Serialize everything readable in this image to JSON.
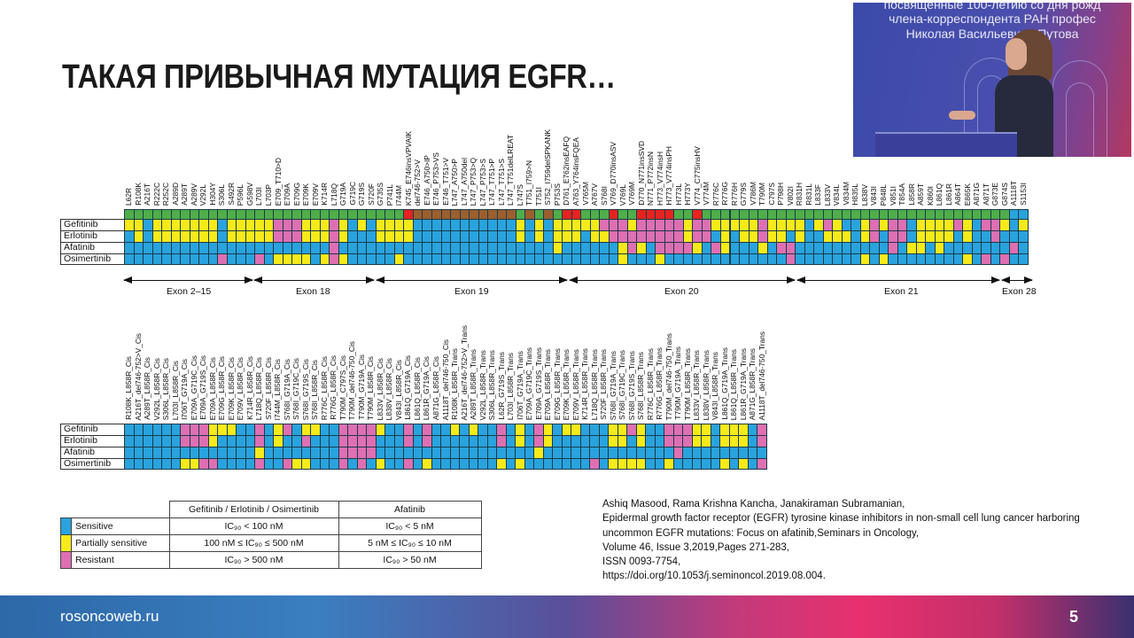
{
  "slide": {
    "title": "ТАКАЯ ПРИВЫЧНАЯ МУТАЦИЯ EGFR…",
    "footer_site": "rosoncoweb.ru",
    "page_number": "5"
  },
  "video_inset": {
    "banner_lines": [
      "посвященные 100-летию со дня рожд",
      "члена-корреспондента РАН профес",
      "Николая Васильевича Путова"
    ]
  },
  "colors": {
    "G": "#4fae4a",
    "R": "#e52320",
    "N": "#9b5f2e",
    "S": "#29a3dd",
    "Y": "#f7ea1a",
    "P": "#de6fb2"
  },
  "chart_data": [
    {
      "type": "heatmap",
      "rows": [
        "",
        "Gefitinib",
        "Erlotinib",
        "Afatinib",
        "Osimertinib"
      ],
      "columns": [
        "L62R",
        "R108K",
        "A216T",
        "R222C",
        "R252C",
        "A289D",
        "A289T",
        "A289V",
        "V292L",
        "H304Y",
        "S306L",
        "S492R",
        "P596L",
        "G598V",
        "L703I",
        "L703P",
        "E709_T710>D",
        "E709A",
        "E709G",
        "E709K",
        "E709V",
        "K714R",
        "L718Q",
        "G719A",
        "G719C",
        "G719S",
        "S720F",
        "G735S",
        "P741L",
        "I744M",
        "K745_E746insVPVAIK",
        "del746-752>V",
        "E746_A750>IP",
        "E746_P753>VS",
        "E746_T751>V",
        "L747_A750>P",
        "L747_A750del",
        "L747_P753>Q",
        "L747_P753>S",
        "L747_T751>P",
        "L747_T751>S",
        "L747_T751delLREAT",
        "L747S",
        "T751_I759>N",
        "T751I",
        "S752_I759delSPKANK",
        "P753S",
        "D761_E762insEAFQ",
        "A763_Y764insFQEA",
        "V765M",
        "A767V",
        "S768I",
        "V769_D770insASV",
        "V769L",
        "V769M",
        "D770_N771insSVD",
        "N771_P772insN",
        "H773_V774insH",
        "H773_V774insPH",
        "H773L",
        "H773Y",
        "V774_C775insHV",
        "V774M",
        "R776C",
        "R776G",
        "R776H",
        "G779S",
        "V786M",
        "T790M",
        "C797S",
        "P798H",
        "V802I",
        "R831H",
        "R831L",
        "L833F",
        "L833V",
        "V834L",
        "V834M",
        "H835L",
        "L838V",
        "V843I",
        "P848L",
        "V851I",
        "T854A",
        "L858R",
        "A859T",
        "K860I",
        "L861Q",
        "L861R",
        "A864T",
        "E865K",
        "A871G",
        "A871T",
        "G873E",
        "G874S",
        "A1118T",
        "S1153I"
      ],
      "cells": [
        "GGGGGGGGGGGGGGGGGGGGGGGGGGGGGGRNNNNNNNNNNNGNGNGRRGGGRGGRRRRGGRGGGGGGGGGGGGGGGGGGGGGGGGGGGGGGGGG",
        "YYSYYYYYYYSYYYYYPPPYYYPYSYSYYYYSSSSSSSSSSSYSYSYYYYYPPPYPPPPPYPPYYYYYPYYYYSYPYSSYPYPPSYYYYPYSPPYSY",
        "SYSYYYYYYYSYYYYYPPPYYYPYSSSYYYYSSSSSSSSSSSYSYSYYYSYYPPPPPPPPYPPSYSYYPYYSYSSYYYSYPSPPSYYYYSYSSPSSS",
        "SSSSSSSSSSSSSSSSSSSSSSPSSSSSSSSSSSSSSSSSSSSSSSYSSSSSSYPYSPPPPYSPYSSSYSPPSSSSSSSSSSPSYYSYSSSSSSSPSSS",
        "SSSSSSSSSSPSSSPSYYYYSYPYSSSSSYSSSSSSSSSSSSSSSSSSSSSSSYSSSYSSSSSSSSSSSSSPSSSSSSSYSYSSSSSSSSYSPSPSSSS"
      ],
      "exons": [
        "Exon 2–15",
        "Exon 18",
        "Exon 19",
        "Exon 20",
        "Exon 21",
        "Exon 28"
      ]
    },
    {
      "type": "heatmap",
      "rows": [
        "Gefitinib",
        "Erlotinib",
        "Afatinib",
        "Osimertinib"
      ],
      "columns": [
        "R108K_L858R_Cis",
        "A216T_del746-752>V_Cis",
        "A289T_L858R_Cis",
        "V292L_L858R_Cis",
        "S306L_L858R_Cis",
        "L703I_L858R_Cis",
        "I706T_G719A_Cis",
        "E709A_G719C_Cis",
        "E709A_G719S_Cis",
        "E709A_L858R_Cis",
        "E709G_L858R_Cis",
        "E709K_L858R_Cis",
        "E709V_L858R_Cis",
        "K714R_L858R_Cis",
        "L718Q_L858R_Cis",
        "S720F_L858R_Cis",
        "I744M_L858R_Cis",
        "S768I_G719A_Cis",
        "S768I_G719C_Cis",
        "S768I_G719S_Cis",
        "S768I_L858R_Cis",
        "R776C_L858R_Cis",
        "R776G_L858R_Cis",
        "T790M_C797S_Cis",
        "T790M_del746-750_Cis",
        "T790M_G719A_Cis",
        "T790M_L858R_Cis",
        "L833V_L858R_Cis",
        "L838V_L858R_Cis",
        "V843I_L858R_Cis",
        "L861Q_G719A_Cis",
        "L861Q_L858R_Cis",
        "L861R_G719A_Cis",
        "A871G_L858R_Cis",
        "A1118T_del746-750_Cis",
        "R108K_L858R_Trans",
        "A216T_del746-752>V_Trans",
        "A289T_L858R_Trans",
        "V292L_L858R_Trans",
        "S306L_L858R_Trans",
        "L62R_G719S_Trans",
        "L703I_L858R_Trans",
        "I706T_G719A_Trans",
        "E709A_G719C_Trans",
        "E709A_G719S_Trans",
        "E709A_L858R_Trans",
        "E709G_L858R_Trans",
        "E709K_L858R_Trans",
        "E709V_L858R_Trans",
        "K714R_L858R_Trans",
        "L718Q_L858R_Trans",
        "S720F_L858R_Trans",
        "S768I_G719A_Trans",
        "S768I_G719C_Trans",
        "S768I_G719S_Trans",
        "S768I_L858R_Trans",
        "R776C_L858R_Trans",
        "R776G_L858R_Trans",
        "T790M_del746-750_Trans",
        "T790M_G719A_Trans",
        "T790M_L858R_Trans",
        "L833V_L858R_Trans",
        "L838V_L858R_Trans",
        "V843I_L858R_Trans",
        "L861Q_G719A_Trans",
        "L861Q_L858R_Trans",
        "L861R_G719A_Trans",
        "A871G_L858R_Trans",
        "A1118T_del746-750_Trans"
      ],
      "cells": [
        "SSSSSSPPPYYYSSPSYPSYYSSPPPPYSSPSPSSYSYSSPSYSPYSYYSSSYYPYSSPPPYYSYYYSP",
        "SSSSSSPPPYSSSSPSYSSPSSSPPPPSSSPSPSSSSSSSPSYSPYSSSSSSYYSYSSPPPYYSYYYSP",
        "SSSSSSSSSSSSSSYSSSSSSSSPPPPSSSSSSSSSSSSSSSSSYSSSSSSSSSSSSSSPSSSSSSSS",
        "SSSSSSYYPPSSSSPSSPYYSSSPSPSYSSPSYSSSSSSSYSYSSSSSSSPSYYYYSSYSSSSSYSYSP"
      ]
    }
  ],
  "legend": {
    "headers": [
      "Gefitinib / Erlotinib / Osimertinib",
      "Afatinib"
    ],
    "rows": [
      {
        "code": "S",
        "label": "Sensitive",
        "gefitinib_erlotinib_osimertinib": "IC₉₀ < 100 nM",
        "afatinib": "IC₉₀ < 5 nM"
      },
      {
        "code": "Y",
        "label": "Partially sensitive",
        "gefitinib_erlotinib_osimertinib": "100 nM ≤ IC₉₀ ≤ 500 nM",
        "afatinib": "5 nM ≤ IC₉₀ ≤ 10 nM"
      },
      {
        "code": "P",
        "label": "Resistant",
        "gefitinib_erlotinib_osimertinib": "IC₉₀ > 500 nM",
        "afatinib": "IC₉₀ > 50 nM"
      }
    ]
  },
  "citation": [
    "Ashiq Masood, Rama Krishna Kancha, Janakiraman Subramanian,",
    "Epidermal growth factor receptor (EGFR) tyrosine kinase inhibitors in non-small cell lung cancer harboring",
    "uncommon EGFR mutations: Focus on afatinib,Seminars in Oncology,",
    "Volume 46, Issue 3,2019,Pages 271-283,",
    "ISSN 0093-7754,",
    "https://doi.org/10.1053/j.seminoncol.2019.08.004."
  ]
}
